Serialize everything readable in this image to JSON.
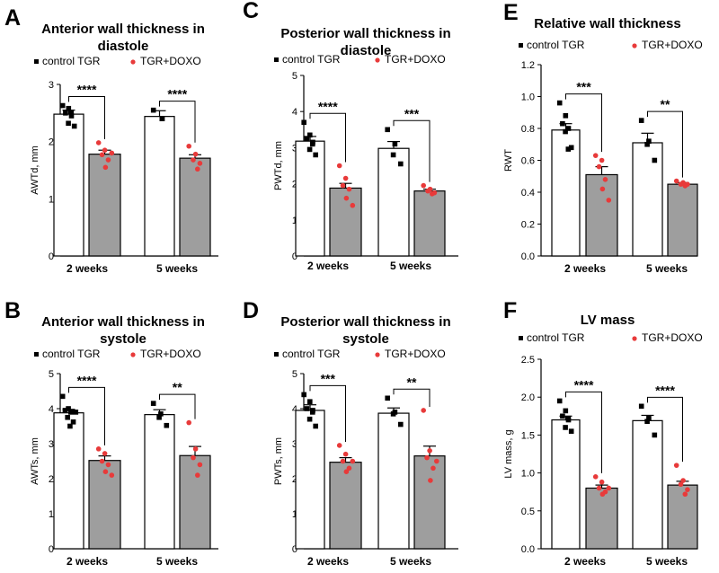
{
  "figure": {
    "description_hidden": false
  },
  "legend": {
    "control": "control TGR",
    "doxo": "TGR+DOXO",
    "control_color": "#000000",
    "doxo_color": "#e83a3a",
    "control_fill": "#ffffff",
    "doxo_fill": "#9e9e9e"
  },
  "chart_data": [
    {
      "letter": "A",
      "type": "bar",
      "title_lines": [
        "Anterior wall thickness in",
        "diastole"
      ],
      "ylabel": "AWTd, mm",
      "categories": [
        "2 weeks",
        "5 weeks"
      ],
      "yticks": [
        "0",
        "1",
        "2",
        "3"
      ],
      "ylim": [
        0,
        3
      ],
      "series": [
        {
          "name": "control TGR",
          "values": [
            2.48,
            2.44
          ],
          "errors": [
            0.07,
            0.1
          ],
          "points": [
            [
              2.63,
              2.58,
              2.5,
              2.45,
              2.32,
              2.27,
              2.5
            ],
            [
              2.55,
              2.4,
              2.4
            ]
          ]
        },
        {
          "name": "TGR+DOXO",
          "values": [
            1.78,
            1.71
          ],
          "errors": [
            0.07,
            0.06
          ],
          "points": [
            [
              1.98,
              1.85,
              1.77,
              1.68,
              1.55,
              1.8
            ],
            [
              1.92,
              1.78,
              1.68,
              1.62,
              1.52
            ]
          ]
        }
      ],
      "significance": [
        "****",
        "****"
      ]
    },
    {
      "letter": "B",
      "type": "bar",
      "title_lines": [
        "Anterior wall thickness in",
        "systole"
      ],
      "ylabel": "AWTs, mm",
      "categories": [
        "2 weeks",
        "5 weeks"
      ],
      "yticks": [
        "0",
        "1",
        "2",
        "3",
        "4",
        "5"
      ],
      "ylim": [
        0,
        5
      ],
      "series": [
        {
          "name": "control TGR",
          "values": [
            3.88,
            3.83
          ],
          "errors": [
            0.1,
            0.14
          ],
          "points": [
            [
              4.35,
              4.0,
              3.95,
              3.9,
              3.75,
              3.62,
              3.5,
              3.9
            ],
            [
              4.15,
              3.85,
              3.75,
              3.52
            ]
          ]
        },
        {
          "name": "TGR+DOXO",
          "values": [
            2.52,
            2.66
          ],
          "errors": [
            0.13,
            0.26
          ],
          "points": [
            [
              2.85,
              2.72,
              2.5,
              2.4,
              2.2,
              2.1
            ],
            [
              3.6,
              2.85,
              2.6,
              2.4,
              2.1
            ]
          ]
        }
      ],
      "significance": [
        "****",
        "**"
      ]
    },
    {
      "letter": "C",
      "type": "bar",
      "title_lines": [
        "Posterior wall thickness in",
        "diastole"
      ],
      "ylabel": "PWTd, mm",
      "categories": [
        "2 weeks",
        "5 weeks"
      ],
      "yticks": [
        "0",
        "1",
        "2",
        "3",
        "4",
        "5"
      ],
      "ylim": [
        0,
        5
      ],
      "series": [
        {
          "name": "control TGR",
          "values": [
            3.18,
            2.98
          ],
          "errors": [
            0.13,
            0.19
          ],
          "points": [
            [
              3.7,
              3.35,
              3.25,
              3.15,
              2.95,
              2.8,
              3.1
            ],
            [
              3.5,
              3.1,
              2.8,
              2.55
            ]
          ]
        },
        {
          "name": "TGR+DOXO",
          "values": [
            1.88,
            1.8
          ],
          "errors": [
            0.13,
            0.05
          ],
          "points": [
            [
              2.5,
              2.15,
              1.95,
              1.85,
              1.6,
              1.4
            ],
            [
              1.95,
              1.85,
              1.8,
              1.75,
              1.72
            ]
          ]
        }
      ],
      "significance": [
        "****",
        "***"
      ]
    },
    {
      "letter": "D",
      "type": "bar",
      "title_lines": [
        "Posterior wall thickness in",
        "systole"
      ],
      "ylabel": "PWTs, mm",
      "categories": [
        "2 weeks",
        "5 weeks"
      ],
      "yticks": [
        "0",
        "1",
        "2",
        "3",
        "4",
        "5"
      ],
      "ylim": [
        0,
        5
      ],
      "series": [
        {
          "name": "control TGR",
          "values": [
            3.95,
            3.87
          ],
          "errors": [
            0.16,
            0.15
          ],
          "points": [
            [
              4.4,
              4.2,
              4.0,
              3.95,
              3.7,
              3.5,
              3.9
            ],
            [
              4.3,
              3.9,
              3.85,
              3.55
            ]
          ]
        },
        {
          "name": "TGR+DOXO",
          "values": [
            2.47,
            2.65
          ],
          "errors": [
            0.13,
            0.28
          ],
          "points": [
            [
              2.95,
              2.7,
              2.5,
              2.3,
              2.2,
              2.5
            ],
            [
              3.95,
              2.8,
              2.6,
              2.3,
              1.95,
              2.5
            ]
          ]
        }
      ],
      "significance": [
        "***",
        "**"
      ]
    },
    {
      "letter": "E",
      "type": "bar",
      "title_lines": [
        "Relative wall thickness"
      ],
      "ylabel": "RWT",
      "categories": [
        "2 weeks",
        "5 weeks"
      ],
      "yticks": [
        "0.0",
        "0.2",
        "0.4",
        "0.6",
        "0.8",
        "1.0",
        "1.2"
      ],
      "ylim": [
        0,
        1.2
      ],
      "series": [
        {
          "name": "control TGR",
          "values": [
            0.79,
            0.71
          ],
          "errors": [
            0.04,
            0.06
          ],
          "points": [
            [
              0.96,
              0.88,
              0.83,
              0.8,
              0.78,
              0.68,
              0.67
            ],
            [
              0.85,
              0.72,
              0.7,
              0.6
            ]
          ]
        },
        {
          "name": "TGR+DOXO",
          "values": [
            0.51,
            0.45
          ],
          "errors": [
            0.05,
            0.01
          ],
          "points": [
            [
              0.63,
              0.6,
              0.56,
              0.48,
              0.42,
              0.35
            ],
            [
              0.47,
              0.46,
              0.45,
              0.45,
              0.44
            ]
          ]
        }
      ],
      "significance": [
        "***",
        "**"
      ]
    },
    {
      "letter": "F",
      "type": "bar",
      "title_lines": [
        "LV mass"
      ],
      "ylabel": "LV mass, g",
      "categories": [
        "2 weeks",
        "5 weeks"
      ],
      "yticks": [
        "0.0",
        "0.5",
        "1.0",
        "1.5",
        "2.0",
        "2.5"
      ],
      "ylim": [
        0,
        2.5
      ],
      "series": [
        {
          "name": "control TGR",
          "values": [
            1.7,
            1.69
          ],
          "errors": [
            0.05,
            0.07
          ],
          "points": [
            [
              1.95,
              1.82,
              1.75,
              1.7,
              1.6,
              1.55,
              1.72
            ],
            [
              1.88,
              1.72,
              1.68,
              1.5
            ]
          ]
        },
        {
          "name": "TGR+DOXO",
          "values": [
            0.8,
            0.84
          ],
          "errors": [
            0.04,
            0.05
          ],
          "points": [
            [
              0.95,
              0.88,
              0.8,
              0.75,
              0.72,
              0.8
            ],
            [
              1.1,
              0.9,
              0.85,
              0.78,
              0.72
            ]
          ]
        }
      ],
      "significance": [
        "****",
        "****"
      ]
    }
  ]
}
